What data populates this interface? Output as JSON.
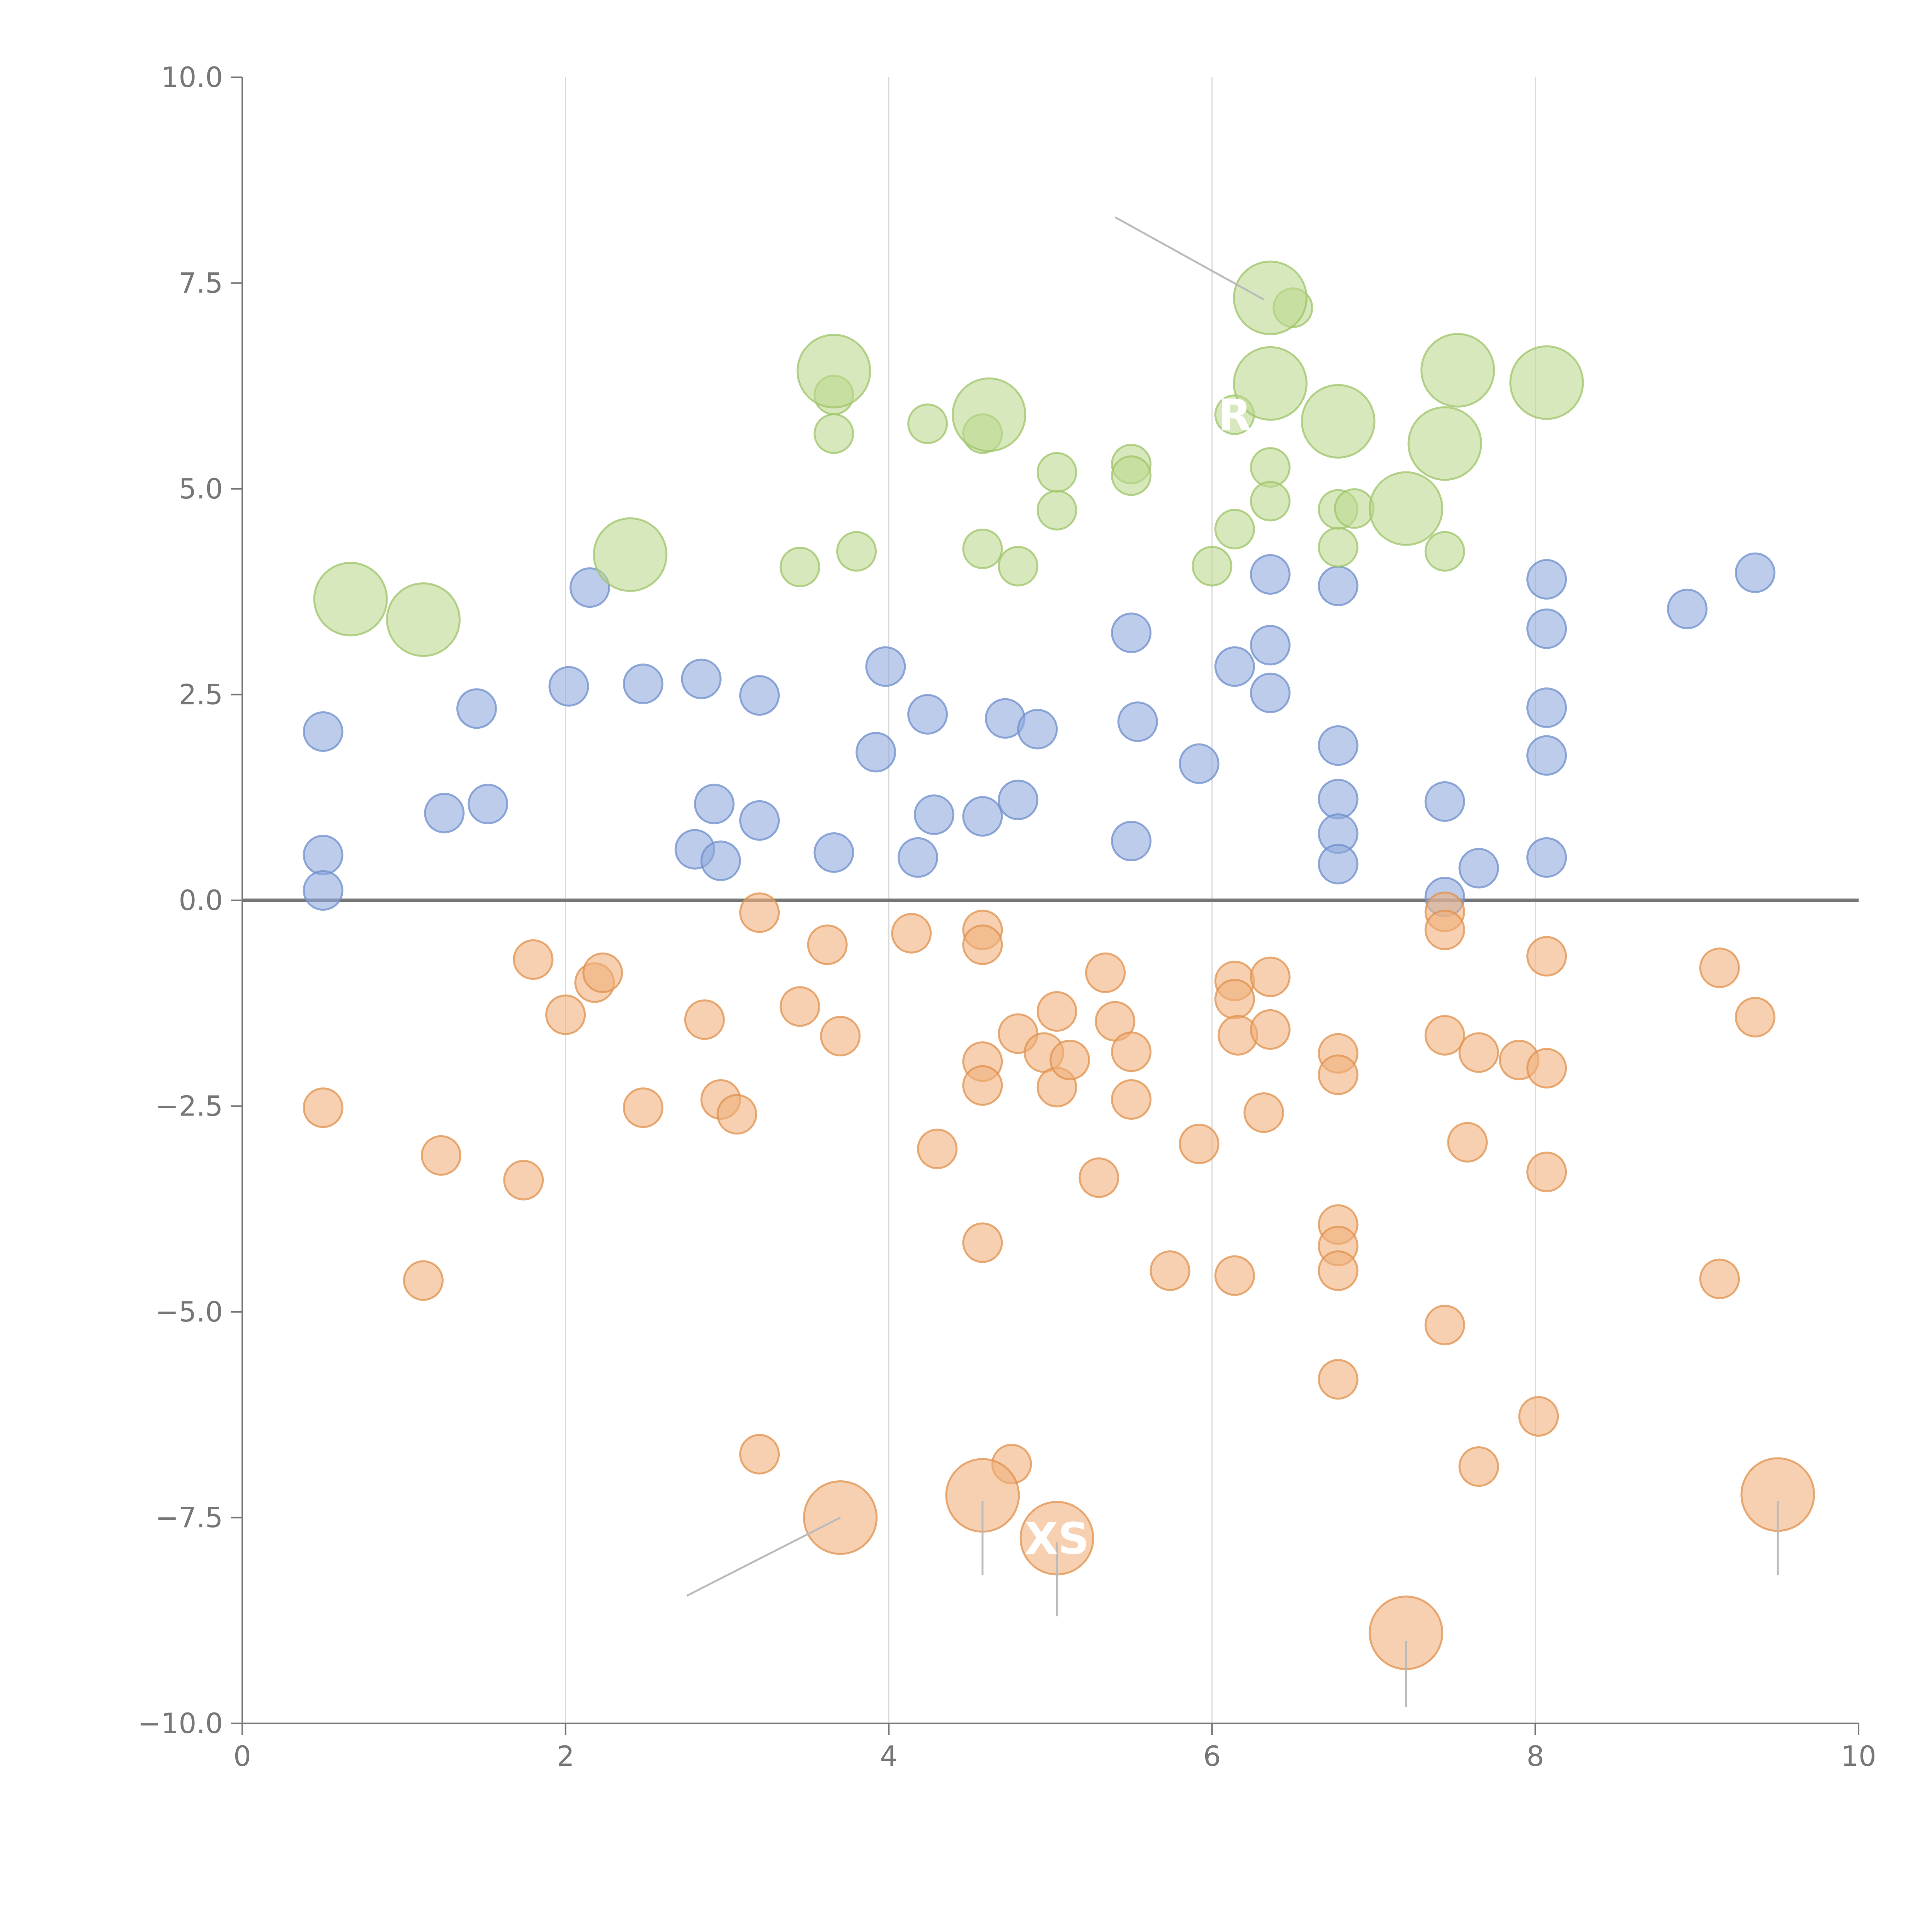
{
  "chart_data": {
    "type": "scatter",
    "title": "",
    "xlabel": "",
    "ylabel": "",
    "xlim": [
      0,
      10
    ],
    "ylim": [
      -10,
      10
    ],
    "xticks": [
      "0",
      "2",
      "4",
      "6",
      "8",
      "10"
    ],
    "yticks": [
      "10.0",
      "7.5",
      "5.0",
      "2.5",
      "0.0",
      "−2.5",
      "−5.0",
      "−7.5",
      "−10.0"
    ],
    "grid_x": [
      2,
      4,
      6,
      8
    ],
    "baseline_y": 0,
    "colors": {
      "blue": "#8faadc",
      "orange": "#f0b07c",
      "green": "#bcd88f",
      "blue_stroke": "#6f8fcc",
      "orange_stroke": "#e0914e",
      "green_stroke": "#9fc46a",
      "axis": "#777777",
      "grid": "#d9d9d9",
      "baseline": "#777777",
      "leader": "#bbbbbb"
    },
    "series": [
      {
        "name": "blue",
        "size": "small",
        "points": [
          [
            0.5,
            2.05
          ],
          [
            0.5,
            0.55
          ],
          [
            0.5,
            0.12
          ],
          [
            1.25,
            1.06
          ],
          [
            1.45,
            2.33
          ],
          [
            1.52,
            1.17
          ],
          [
            2.02,
            2.6
          ],
          [
            2.15,
            3.8
          ],
          [
            2.48,
            2.63
          ],
          [
            2.8,
            0.62
          ],
          [
            2.84,
            2.69
          ],
          [
            2.92,
            1.17
          ],
          [
            2.96,
            0.48
          ],
          [
            3.2,
            2.49
          ],
          [
            3.2,
            0.97
          ],
          [
            3.66,
            0.58
          ],
          [
            3.92,
            1.8
          ],
          [
            3.98,
            2.84
          ],
          [
            4.18,
            0.52
          ],
          [
            4.24,
            2.26
          ],
          [
            4.28,
            1.04
          ],
          [
            4.58,
            1.02
          ],
          [
            4.72,
            2.21
          ],
          [
            4.8,
            1.22
          ],
          [
            4.92,
            2.08
          ],
          [
            5.5,
            3.25
          ],
          [
            5.5,
            0.72
          ],
          [
            5.54,
            2.17
          ],
          [
            5.92,
            1.66
          ],
          [
            6.14,
            2.84
          ],
          [
            6.36,
            3.96
          ],
          [
            6.36,
            3.1
          ],
          [
            6.36,
            2.52
          ],
          [
            6.78,
            3.82
          ],
          [
            6.78,
            1.88
          ],
          [
            6.78,
            1.23
          ],
          [
            6.78,
            0.81
          ],
          [
            6.78,
            0.44
          ],
          [
            7.44,
            1.2
          ],
          [
            7.44,
            0.04
          ],
          [
            7.65,
            0.39
          ],
          [
            8.07,
            3.9
          ],
          [
            8.07,
            3.3
          ],
          [
            8.07,
            2.34
          ],
          [
            8.07,
            1.76
          ],
          [
            8.07,
            0.52
          ],
          [
            8.94,
            3.54
          ],
          [
            9.36,
            3.98
          ]
        ]
      },
      {
        "name": "orange",
        "size": "small",
        "points": [
          [
            0.5,
            -2.52
          ],
          [
            1.12,
            -4.62
          ],
          [
            1.23,
            -3.1
          ],
          [
            1.74,
            -3.4
          ],
          [
            1.8,
            -0.72
          ],
          [
            2.0,
            -1.39
          ],
          [
            2.18,
            -1.0
          ],
          [
            2.23,
            -0.88
          ],
          [
            2.48,
            -2.52
          ],
          [
            2.86,
            -1.45
          ],
          [
            2.96,
            -2.42
          ],
          [
            3.06,
            -2.6
          ],
          [
            3.2,
            -0.15
          ],
          [
            3.2,
            -6.73
          ],
          [
            3.45,
            -1.29
          ],
          [
            3.62,
            -0.54
          ],
          [
            3.7,
            -1.65
          ],
          [
            4.14,
            -0.4
          ],
          [
            4.3,
            -3.02
          ],
          [
            4.58,
            -0.36
          ],
          [
            4.58,
            -0.54
          ],
          [
            4.58,
            -1.96
          ],
          [
            4.58,
            -2.25
          ],
          [
            4.58,
            -4.16
          ],
          [
            4.76,
            -6.85
          ],
          [
            4.8,
            -1.62
          ],
          [
            4.96,
            -1.85
          ],
          [
            5.04,
            -1.35
          ],
          [
            5.04,
            -2.27
          ],
          [
            5.12,
            -1.94
          ],
          [
            5.3,
            -3.37
          ],
          [
            5.34,
            -0.88
          ],
          [
            5.4,
            -1.47
          ],
          [
            5.5,
            -1.84
          ],
          [
            5.5,
            -2.42
          ],
          [
            5.74,
            -4.5
          ],
          [
            5.92,
            -2.96
          ],
          [
            6.14,
            -0.98
          ],
          [
            6.14,
            -1.2
          ],
          [
            6.16,
            -1.64
          ],
          [
            6.14,
            -4.56
          ],
          [
            6.32,
            -2.58
          ],
          [
            6.36,
            -0.93
          ],
          [
            6.36,
            -1.57
          ],
          [
            6.78,
            -1.86
          ],
          [
            6.78,
            -2.12
          ],
          [
            6.78,
            -3.94
          ],
          [
            6.78,
            -4.2
          ],
          [
            6.78,
            -4.5
          ],
          [
            6.78,
            -5.82
          ],
          [
            7.44,
            -0.14
          ],
          [
            7.44,
            -0.36
          ],
          [
            7.44,
            -1.64
          ],
          [
            7.44,
            -5.16
          ],
          [
            7.58,
            -2.94
          ],
          [
            7.65,
            -1.85
          ],
          [
            7.65,
            -6.88
          ],
          [
            7.9,
            -1.94
          ],
          [
            8.02,
            -6.27
          ],
          [
            8.07,
            -0.68
          ],
          [
            8.07,
            -2.04
          ],
          [
            8.07,
            -3.3
          ],
          [
            9.14,
            -0.82
          ],
          [
            9.14,
            -4.6
          ],
          [
            9.36,
            -1.42
          ]
        ]
      },
      {
        "name": "orange-large",
        "size": "large",
        "points": [
          [
            3.7,
            -7.5
          ],
          [
            4.58,
            -7.23
          ],
          [
            5.04,
            -7.75
          ],
          [
            7.2,
            -8.9
          ],
          [
            9.5,
            -7.22
          ]
        ]
      },
      {
        "name": "green",
        "size": "small",
        "points": [
          [
            3.45,
            4.05
          ],
          [
            3.66,
            6.14
          ],
          [
            3.66,
            5.67
          ],
          [
            3.8,
            4.24
          ],
          [
            4.24,
            5.79
          ],
          [
            4.58,
            5.67
          ],
          [
            4.58,
            4.27
          ],
          [
            4.8,
            4.06
          ],
          [
            5.04,
            5.2
          ],
          [
            5.04,
            4.74
          ],
          [
            5.5,
            5.3
          ],
          [
            5.5,
            5.16
          ],
          [
            6.0,
            4.06
          ],
          [
            6.14,
            4.51
          ],
          [
            6.14,
            5.9
          ],
          [
            6.36,
            5.26
          ],
          [
            6.36,
            4.85
          ],
          [
            6.5,
            7.2
          ],
          [
            6.78,
            4.75
          ],
          [
            6.78,
            4.29
          ],
          [
            6.88,
            4.76
          ],
          [
            7.44,
            4.24
          ]
        ]
      },
      {
        "name": "green-large",
        "size": "large",
        "points": [
          [
            0.67,
            3.66
          ],
          [
            1.12,
            3.41
          ],
          [
            2.4,
            4.2
          ],
          [
            3.66,
            6.43
          ],
          [
            4.62,
            5.9
          ],
          [
            6.36,
            7.32
          ],
          [
            6.36,
            6.28
          ],
          [
            6.78,
            5.82
          ],
          [
            7.2,
            4.76
          ],
          [
            7.44,
            5.55
          ],
          [
            7.52,
            6.44
          ],
          [
            8.07,
            6.29
          ]
        ]
      }
    ],
    "annotations": [
      {
        "label": "R",
        "x": 6.14,
        "y": 5.9
      },
      {
        "label": "XS",
        "x": 5.04,
        "y": -7.75
      }
    ],
    "leaders": [
      [
        [
          5.4,
          8.3
        ],
        [
          6.32,
          7.3
        ]
      ],
      [
        [
          2.75,
          -8.45
        ],
        [
          3.7,
          -7.5
        ]
      ],
      [
        [
          4.58,
          -7.3
        ],
        [
          4.58,
          -8.2
        ]
      ],
      [
        [
          5.04,
          -7.8
        ],
        [
          5.04,
          -8.7
        ]
      ],
      [
        [
          7.2,
          -9.0
        ],
        [
          7.2,
          -9.8
        ]
      ],
      [
        [
          9.5,
          -7.3
        ],
        [
          9.5,
          -8.2
        ]
      ]
    ]
  }
}
